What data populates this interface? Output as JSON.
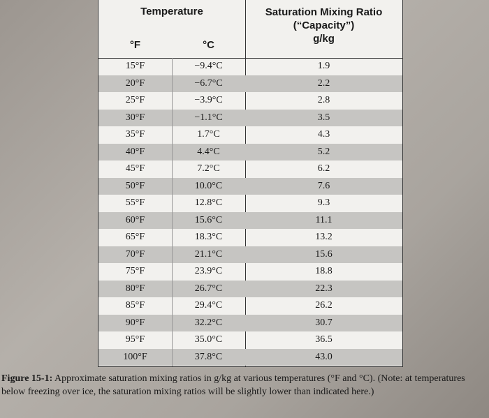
{
  "header": {
    "group1": "Temperature",
    "group2_lines": [
      "Saturation Mixing Ratio",
      "(“Capacity”)",
      "g/kg"
    ],
    "col_f": "°F",
    "col_c": "°C"
  },
  "table": {
    "rows": [
      [
        "15°F",
        "−9.4°C",
        "1.9"
      ],
      [
        "20°F",
        "−6.7°C",
        "2.2"
      ],
      [
        "25°F",
        "−3.9°C",
        "2.8"
      ],
      [
        "30°F",
        "−1.1°C",
        "3.5"
      ],
      [
        "35°F",
        "1.7°C",
        "4.3"
      ],
      [
        "40°F",
        "4.4°C",
        "5.2"
      ],
      [
        "45°F",
        "7.2°C",
        "6.2"
      ],
      [
        "50°F",
        "10.0°C",
        "7.6"
      ],
      [
        "55°F",
        "12.8°C",
        "9.3"
      ],
      [
        "60°F",
        "15.6°C",
        "11.1"
      ],
      [
        "65°F",
        "18.3°C",
        "13.2"
      ],
      [
        "70°F",
        "21.1°C",
        "15.6"
      ],
      [
        "75°F",
        "23.9°C",
        "18.8"
      ],
      [
        "80°F",
        "26.7°C",
        "22.3"
      ],
      [
        "85°F",
        "29.4°C",
        "26.2"
      ],
      [
        "90°F",
        "32.2°C",
        "30.7"
      ],
      [
        "95°F",
        "35.0°C",
        "36.5"
      ],
      [
        "100°F",
        "37.8°C",
        "43.0"
      ]
    ]
  },
  "caption": {
    "label": "Figure 15-1:",
    "text": "Approximate saturation mixing ratios in g/kg at various temperatures (°F and °C). (Note: at temperatures below freezing over ice, the saturation mixing ratios will be slightly lower than indicated here.)"
  }
}
